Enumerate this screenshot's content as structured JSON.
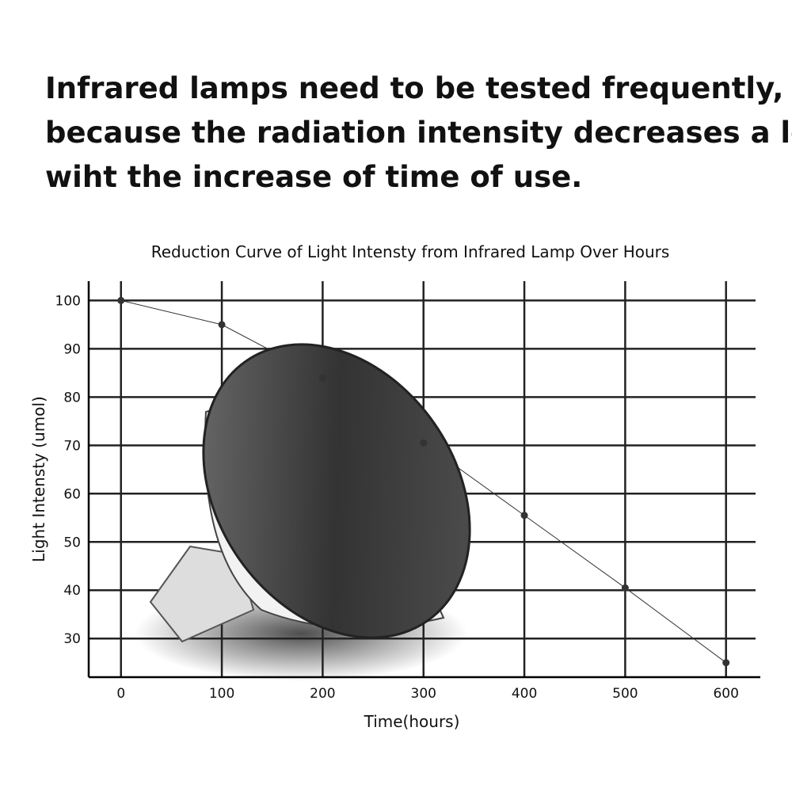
{
  "heading": {
    "lines": [
      "Infrared lamps need to be tested frequently,",
      "because the radiation intensity decreases a lot",
      "wiht the increase of time of use."
    ]
  },
  "chart_data": {
    "type": "line",
    "title": "Reduction Curve of Light Intensty from Infrared Lamp Over Hours",
    "x_label": "Time(hours)",
    "y_label": "Light Intensty  (umol)",
    "x": [
      0,
      100,
      200,
      300,
      400,
      500,
      600
    ],
    "series": [
      {
        "name": "Light Intensty",
        "color": "#333333",
        "values": [
          100,
          95,
          84,
          70.5,
          55.5,
          40.5,
          25
        ]
      }
    ],
    "xlim": [
      -32,
      634
    ],
    "xticks": [
      0,
      100,
      200,
      300,
      400,
      500,
      600
    ],
    "ylim": [
      22,
      104
    ],
    "yticks": [
      30,
      40,
      50,
      60,
      70,
      80,
      90,
      100
    ],
    "grid": true
  }
}
